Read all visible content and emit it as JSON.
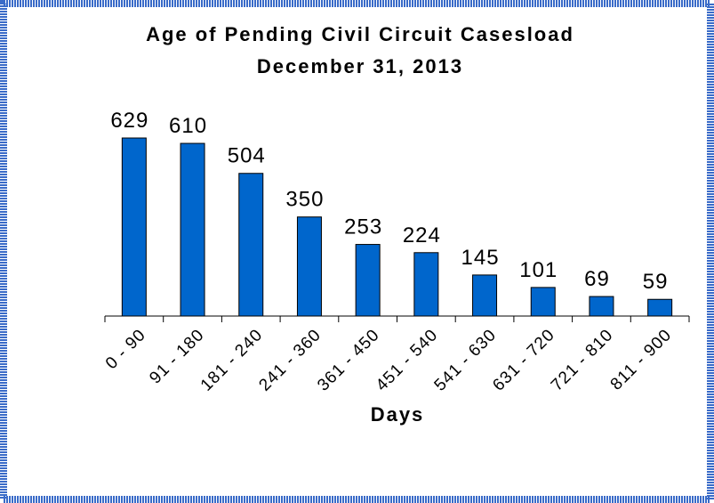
{
  "chart_data": {
    "type": "bar",
    "title": "Age of Pending Civil Circuit Casesload",
    "subtitle": "December 31, 2013",
    "x_label": "Days",
    "categories": [
      "0 - 90",
      "91 - 180",
      "181 - 240",
      "241 - 360",
      "361 - 450",
      "451 - 540",
      "541 - 630",
      "631 - 720",
      "721 - 810",
      "811 - 900"
    ],
    "values": [
      629,
      610,
      504,
      350,
      253,
      224,
      145,
      101,
      69,
      59
    ],
    "color": "#0066cc"
  }
}
